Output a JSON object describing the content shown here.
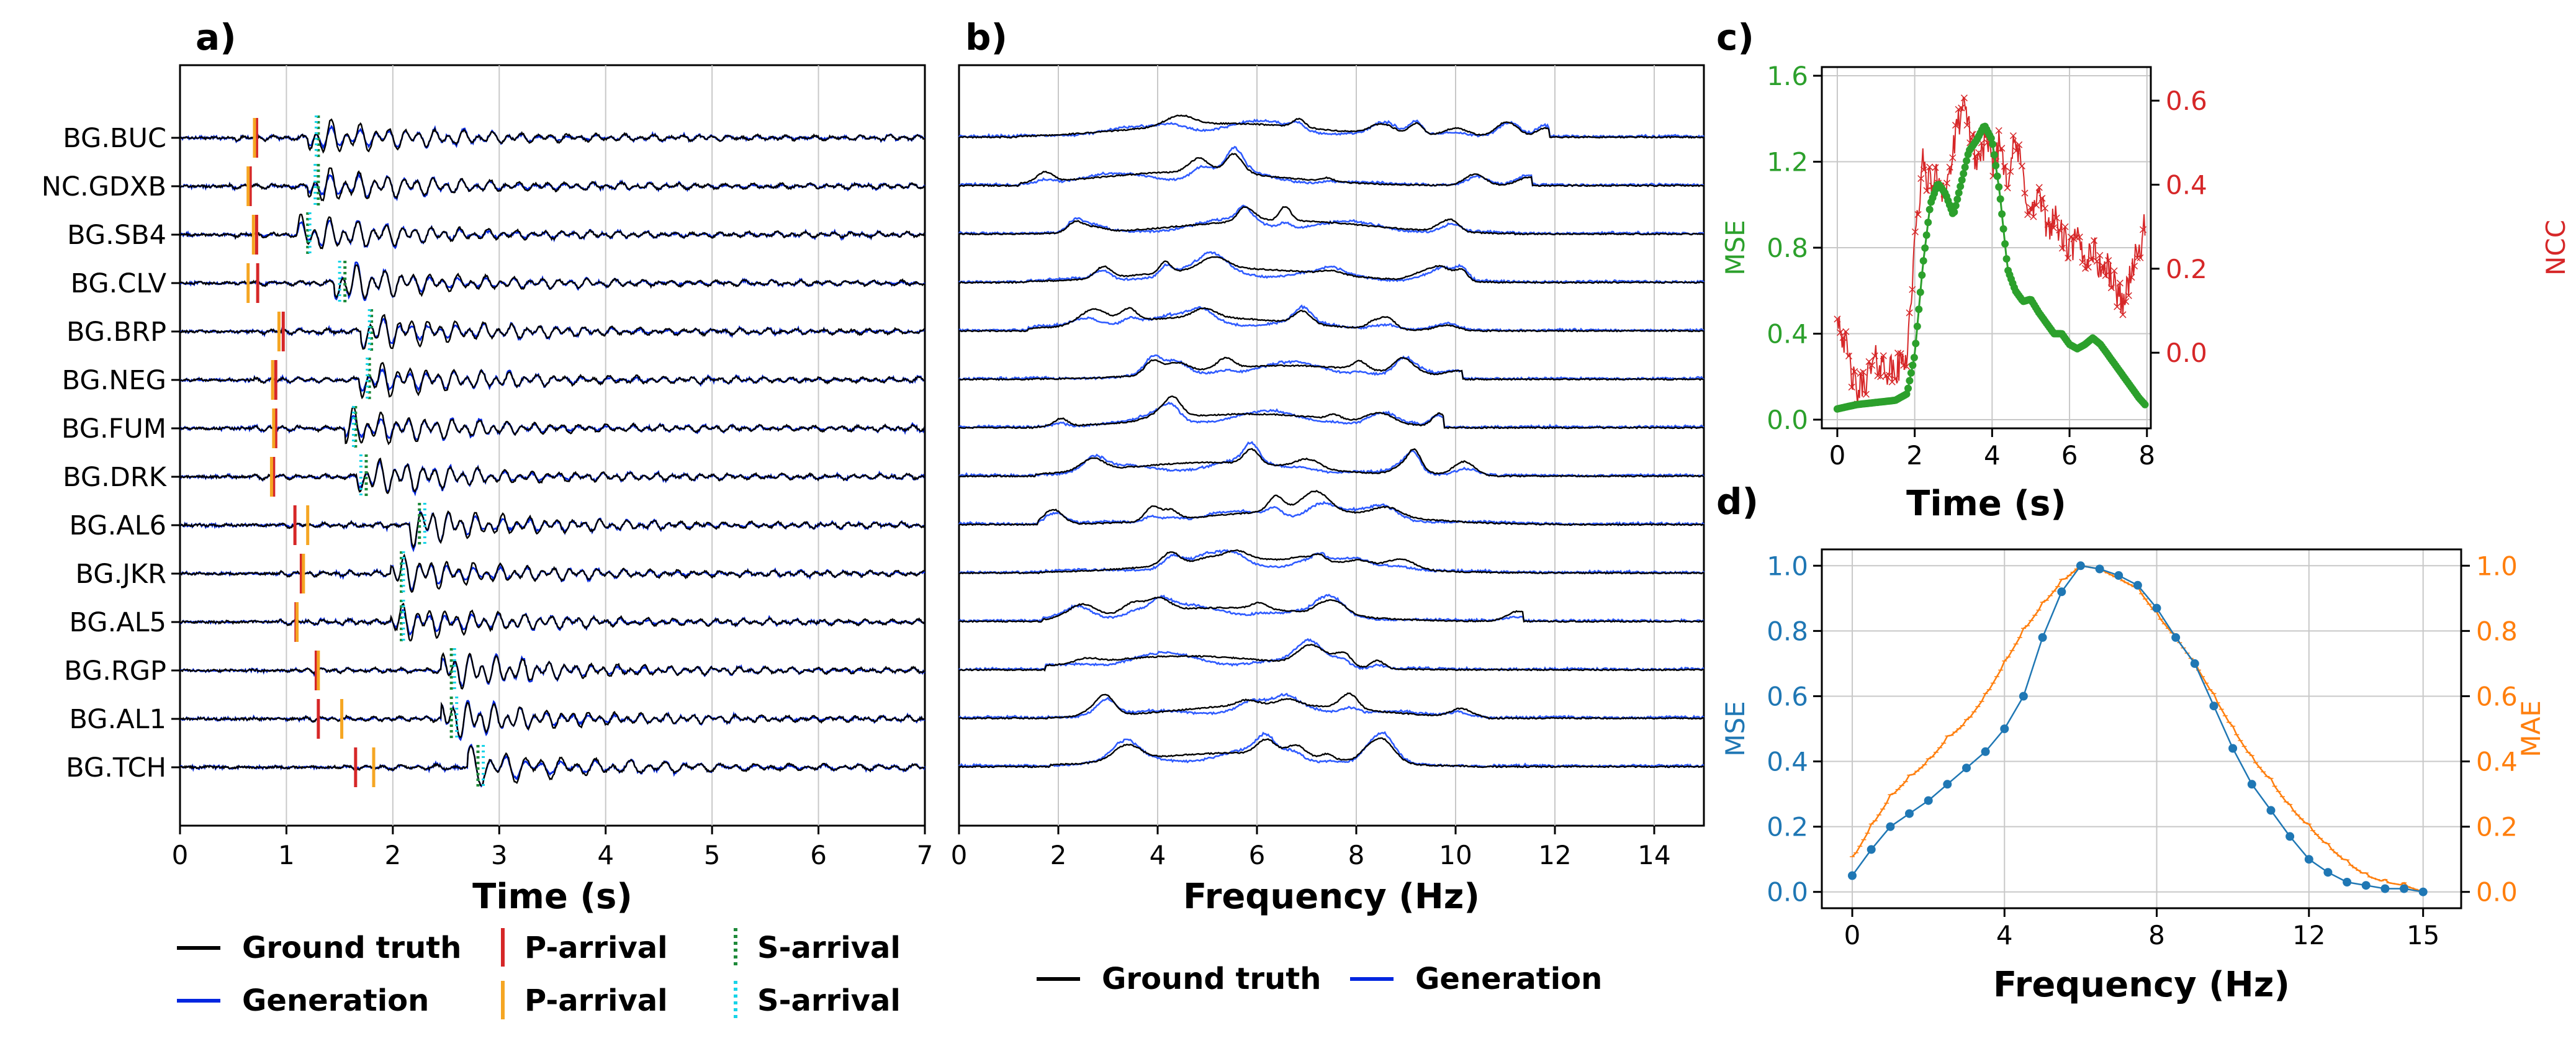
{
  "panels": {
    "a": {
      "letter": "a)",
      "stations": [
        "BG.BUC",
        "NC.GDXB",
        "BG.SB4",
        "BG.CLV",
        "BG.BRP",
        "BG.NEG",
        "BG.FUM",
        "BG.DRK",
        "BG.AL6",
        "BG.JKR",
        "BG.AL5",
        "BG.RGP",
        "BG.AL1",
        "BG.TCH"
      ],
      "p_red": [
        0.72,
        0.66,
        0.72,
        0.73,
        0.97,
        0.9,
        0.9,
        0.88,
        1.08,
        1.14,
        1.09,
        1.28,
        1.3,
        1.65
      ],
      "p_orange": [
        0.7,
        0.64,
        0.69,
        0.64,
        0.93,
        0.87,
        0.88,
        0.86,
        1.2,
        1.16,
        1.1,
        1.3,
        1.52,
        1.82
      ],
      "s_green": [
        1.3,
        1.3,
        1.2,
        1.55,
        1.8,
        1.78,
        1.65,
        1.75,
        2.25,
        2.08,
        2.08,
        2.55,
        2.55,
        2.8
      ],
      "s_cyan": [
        1.28,
        1.27,
        1.22,
        1.5,
        1.78,
        1.76,
        1.63,
        1.7,
        2.3,
        2.1,
        2.1,
        2.58,
        2.6,
        2.85
      ],
      "xticks": [
        "0",
        "1",
        "2",
        "3",
        "4",
        "5",
        "6",
        "7"
      ],
      "xlabel": "Time (s)"
    },
    "b": {
      "letter": "b)",
      "xticks": [
        "0",
        "2",
        "4",
        "6",
        "8",
        "10",
        "12",
        "14"
      ],
      "xlabel": "Frequency (Hz)"
    },
    "c": {
      "letter": "c)",
      "xticks": [
        "0",
        "2",
        "4",
        "6",
        "8"
      ],
      "yticks_left": [
        "0.0",
        "0.4",
        "0.8",
        "1.2",
        "1.6"
      ],
      "yticks_right": [
        "0.0",
        "0.2",
        "0.4",
        "0.6"
      ],
      "xlabel": "Time (s)",
      "ylabel_left": "MSE",
      "ylabel_right": "NCC"
    },
    "d": {
      "letter": "d)",
      "xticks": [
        "0",
        "4",
        "8",
        "12",
        "15"
      ],
      "yticks_left": [
        "0.0",
        "0.2",
        "0.4",
        "0.6",
        "0.8",
        "1.0"
      ],
      "yticks_right": [
        "0.0",
        "0.2",
        "0.4",
        "0.6",
        "0.8",
        "1.0"
      ],
      "xlabel": "Frequency (Hz)",
      "ylabel_left": "MSE",
      "ylabel_right": "MAE"
    }
  },
  "legend_a": [
    {
      "label": "Ground truth",
      "color": "#000000",
      "style": "solid"
    },
    {
      "label": "Generation",
      "color": "#0026e0",
      "style": "solid"
    },
    {
      "label": "P-arrival",
      "color": "#d62728",
      "style": "solid"
    },
    {
      "label": "P-arrival",
      "color": "#f5a623",
      "style": "solid"
    },
    {
      "label": "S-arrival",
      "color": "#1f8a3a",
      "style": "dotted"
    },
    {
      "label": "S-arrival",
      "color": "#17d4e8",
      "style": "dotted"
    }
  ],
  "legend_b": [
    {
      "label": "Ground truth",
      "color": "#000000"
    },
    {
      "label": "Generation",
      "color": "#0026e0"
    }
  ],
  "colors": {
    "truth": "#000000",
    "generation": "#0026e0",
    "gen_light": "#2f5bff",
    "mse_c": "#2ca02c",
    "ncc": "#d62728",
    "mse_d": "#1f77b4",
    "mae": "#ff7f0e",
    "grid": "#c8c8c8"
  },
  "chart_data": [
    {
      "type": "line",
      "panel": "c",
      "x": [
        0,
        0.5,
        1,
        1.5,
        1.8,
        2,
        2.2,
        2.4,
        2.6,
        2.8,
        3,
        3.2,
        3.4,
        3.6,
        3.8,
        4,
        4.2,
        4.4,
        4.6,
        4.8,
        5,
        5.2,
        5.4,
        5.6,
        5.8,
        6,
        6.2,
        6.4,
        6.6,
        6.8,
        7,
        7.2,
        7.4,
        7.6,
        7.8,
        7.95
      ],
      "series": [
        {
          "name": "MSE",
          "axis": "left",
          "values": [
            0.05,
            0.07,
            0.08,
            0.09,
            0.12,
            0.3,
            0.7,
            1.0,
            1.1,
            1.05,
            0.95,
            1.1,
            1.25,
            1.3,
            1.37,
            1.3,
            1.05,
            0.7,
            0.6,
            0.55,
            0.56,
            0.5,
            0.45,
            0.4,
            0.4,
            0.35,
            0.33,
            0.35,
            0.38,
            0.35,
            0.3,
            0.25,
            0.2,
            0.15,
            0.1,
            0.07
          ]
        },
        {
          "name": "NCC",
          "axis": "right",
          "values": [
            0.1,
            -0.1,
            -0.02,
            -0.05,
            0.0,
            0.25,
            0.45,
            0.4,
            0.42,
            0.38,
            0.48,
            0.58,
            0.55,
            0.45,
            0.5,
            0.45,
            0.5,
            0.42,
            0.5,
            0.42,
            0.32,
            0.38,
            0.3,
            0.32,
            0.28,
            0.24,
            0.27,
            0.22,
            0.25,
            0.2,
            0.2,
            0.15,
            0.12,
            0.2,
            0.24,
            0.3
          ]
        }
      ],
      "ylim_left": [
        0,
        1.6
      ],
      "ylim_right": [
        -0.18,
        0.68
      ],
      "xlim": [
        -0.4,
        8.1
      ],
      "grid": true
    },
    {
      "type": "line",
      "panel": "d",
      "x": [
        0,
        0.5,
        1,
        1.5,
        2,
        2.5,
        3,
        3.5,
        4,
        4.5,
        5,
        5.5,
        6,
        6.5,
        7,
        7.5,
        8,
        8.5,
        9,
        9.5,
        10,
        10.5,
        11,
        11.5,
        12,
        12.5,
        13,
        13.5,
        14,
        14.5,
        15
      ],
      "series": [
        {
          "name": "MSE",
          "axis": "left",
          "values": [
            0.05,
            0.13,
            0.2,
            0.24,
            0.28,
            0.33,
            0.38,
            0.43,
            0.5,
            0.6,
            0.78,
            0.92,
            1.0,
            0.99,
            0.97,
            0.94,
            0.87,
            0.78,
            0.7,
            0.57,
            0.44,
            0.33,
            0.25,
            0.17,
            0.1,
            0.06,
            0.03,
            0.02,
            0.01,
            0.01,
            0.0
          ]
        },
        {
          "name": "MAE",
          "axis": "right",
          "values": [
            0.1,
            0.2,
            0.29,
            0.35,
            0.4,
            0.47,
            0.52,
            0.6,
            0.7,
            0.8,
            0.88,
            0.95,
            1.0,
            0.99,
            0.96,
            0.93,
            0.85,
            0.78,
            0.7,
            0.6,
            0.5,
            0.41,
            0.34,
            0.26,
            0.2,
            0.14,
            0.09,
            0.05,
            0.03,
            0.02,
            0.0
          ]
        }
      ],
      "ylim": [
        -0.05,
        1.05
      ],
      "xlim": [
        -0.8,
        16
      ],
      "grid": true
    }
  ]
}
